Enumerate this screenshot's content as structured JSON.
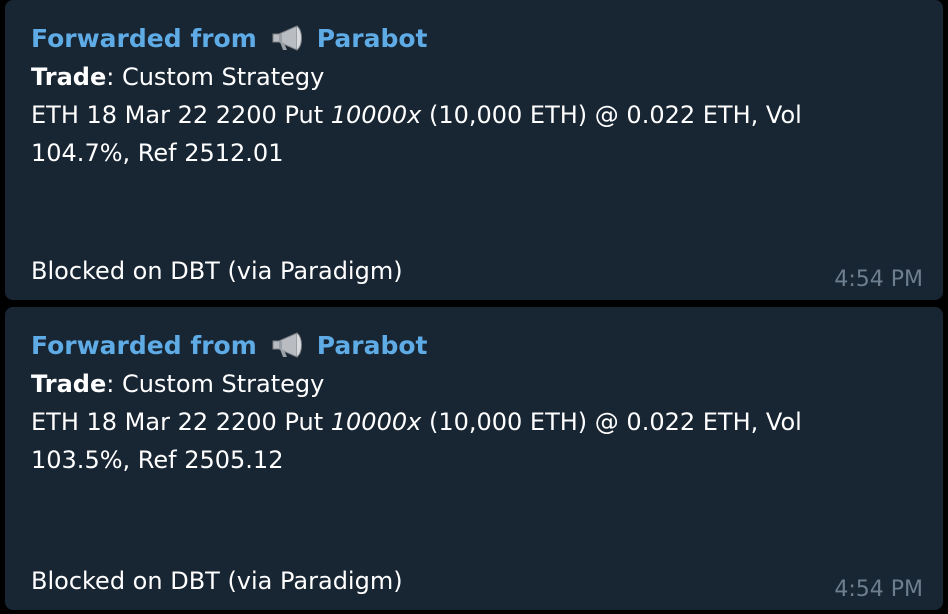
{
  "messages": [
    {
      "forwarded_prefix": "Forwarded from",
      "forwarded_icon": "megaphone-icon",
      "sender": "Parabot",
      "trade_label": "Trade",
      "trade_sep": ": ",
      "trade_value": "Custom Strategy",
      "detail_prefix": "ETH 18 Mar 22 2200 Put ",
      "detail_qty": "10000x",
      "detail_rest": " (10,000 ETH) @ 0.022 ETH, Vol",
      "detail_line2": "104.7%, Ref 2512.01",
      "status": "Blocked on DBT (via Paradigm)",
      "time": "4:54 PM"
    },
    {
      "forwarded_prefix": "Forwarded from",
      "forwarded_icon": "megaphone-icon",
      "sender": "Parabot",
      "trade_label": "Trade",
      "trade_sep": ": ",
      "trade_value": "Custom Strategy",
      "detail_prefix": "ETH 18 Mar 22 2200 Put ",
      "detail_qty": "10000x",
      "detail_rest": " (10,000 ETH) @ 0.022 ETH, Vol",
      "detail_line2": "103.5%, Ref 2505.12",
      "status": "Blocked on DBT (via Paradigm)",
      "time": "4:54 PM"
    }
  ],
  "colors": {
    "background": "#000000",
    "bubble": "#182533",
    "forwarded_text": "#5eabe6",
    "body_text": "#ffffff",
    "time_text": "#6d7f8f"
  }
}
